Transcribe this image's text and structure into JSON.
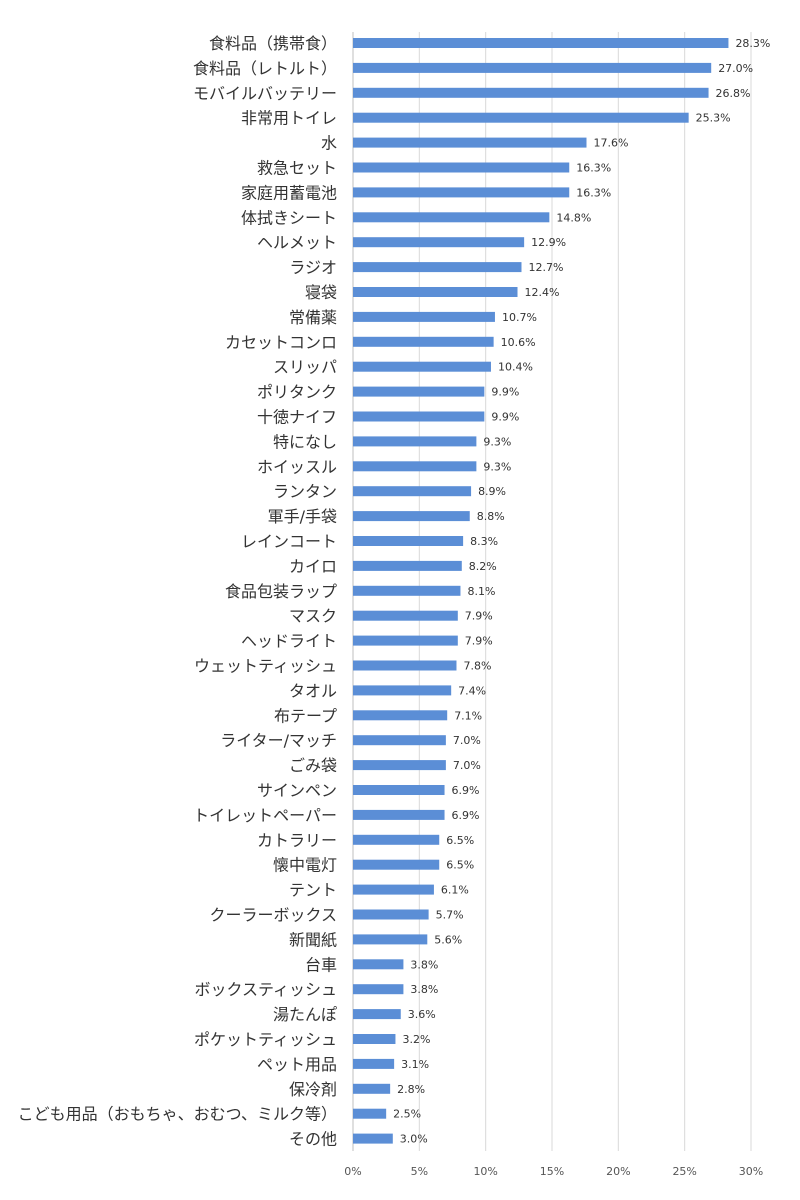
{
  "chart_data": {
    "type": "bar",
    "orientation": "horizontal",
    "title": "",
    "xlabel": "",
    "ylabel": "",
    "xlim": [
      0,
      30
    ],
    "x_ticks": [
      "0%",
      "5%",
      "10%",
      "15%",
      "20%",
      "25%",
      "30%"
    ],
    "grid": true,
    "legend": "none",
    "bar_color": "#5B8ED6",
    "categories": [
      "食料品（携帯食）",
      "食料品（レトルト）",
      "モバイルバッテリー",
      "非常用トイレ",
      "水",
      "救急セット",
      "家庭用蓄電池",
      "体拭きシート",
      "ヘルメット",
      "ラジオ",
      "寝袋",
      "常備薬",
      "カセットコンロ",
      "スリッパ",
      "ポリタンク",
      "十徳ナイフ",
      "特になし",
      "ホイッスル",
      "ランタン",
      "軍手/手袋",
      "レインコート",
      "カイロ",
      "食品包装ラップ",
      "マスク",
      "ヘッドライト",
      "ウェットティッシュ",
      "タオル",
      "布テープ",
      "ライター/マッチ",
      "ごみ袋",
      "サインペン",
      "トイレットペーパー",
      "カトラリー",
      "懐中電灯",
      "テント",
      "クーラーボックス",
      "新聞紙",
      "台車",
      "ボックスティッシュ",
      "湯たんぽ",
      "ポケットティッシュ",
      "ペット用品",
      "保冷剤",
      "こども用品（おもちゃ、おむつ、ミルク等）",
      "その他"
    ],
    "values": [
      28.3,
      27.0,
      26.8,
      25.3,
      17.6,
      16.3,
      16.3,
      14.8,
      12.9,
      12.7,
      12.4,
      10.7,
      10.6,
      10.4,
      9.9,
      9.9,
      9.3,
      9.3,
      8.9,
      8.8,
      8.3,
      8.2,
      8.1,
      7.9,
      7.9,
      7.8,
      7.4,
      7.1,
      7.0,
      7.0,
      6.9,
      6.9,
      6.5,
      6.5,
      6.1,
      5.7,
      5.6,
      3.8,
      3.8,
      3.6,
      3.2,
      3.1,
      2.8,
      2.5,
      3.0
    ],
    "value_labels": [
      "28.3%",
      "27.0%",
      "26.8%",
      "25.3%",
      "17.6%",
      "16.3%",
      "16.3%",
      "14.8%",
      "12.9%",
      "12.7%",
      "12.4%",
      "10.7%",
      "10.6%",
      "10.4%",
      "9.9%",
      "9.9%",
      "9.3%",
      "9.3%",
      "8.9%",
      "8.8%",
      "8.3%",
      "8.2%",
      "8.1%",
      "7.9%",
      "7.9%",
      "7.8%",
      "7.4%",
      "7.1%",
      "7.0%",
      "7.0%",
      "6.9%",
      "6.9%",
      "6.5%",
      "6.5%",
      "6.1%",
      "5.7%",
      "5.6%",
      "3.8%",
      "3.8%",
      "3.6%",
      "3.2%",
      "3.1%",
      "2.8%",
      "2.5%",
      "3.0%"
    ]
  }
}
